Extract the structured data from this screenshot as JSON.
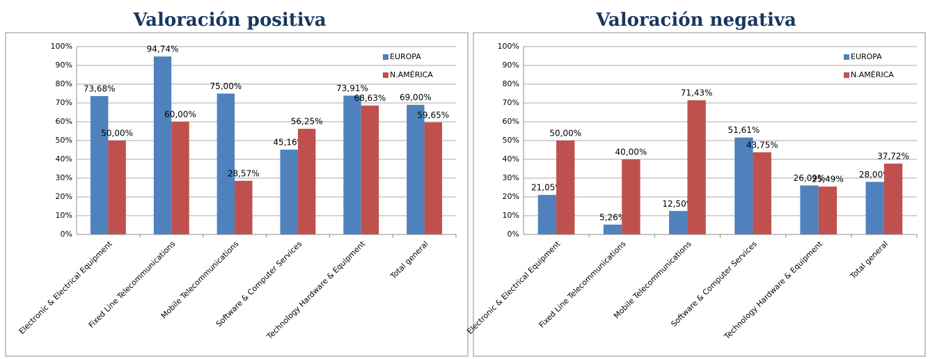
{
  "chart_data": [
    {
      "type": "bar",
      "title": "Valoración positiva",
      "categories": [
        "Electronic & Electrical Equipment",
        "Fixed Line Telecommunications",
        "Mobile Telecommunications",
        "Software & Computer Services",
        "Technology Hardware & Equipment",
        "Total general"
      ],
      "series": [
        {
          "name": "EUROPA",
          "color": "#4f81bd",
          "values": [
            73.68,
            94.74,
            75.0,
            45.16,
            73.91,
            69.0
          ],
          "value_labels": [
            "73,68%",
            "94,74%",
            "75,00%",
            "45,16%",
            "73,91%",
            "69,00%"
          ]
        },
        {
          "name": "N.AMÉRICA",
          "color": "#c0504d",
          "values": [
            50.0,
            60.0,
            28.57,
            56.25,
            68.63,
            59.65
          ],
          "value_labels": [
            "50,00%",
            "60,00%",
            "28,57%",
            "56,25%",
            "68,63%",
            "59,65%"
          ]
        }
      ],
      "ylim": [
        0,
        100
      ],
      "yticks": [
        {
          "value": 0,
          "label": "0%"
        },
        {
          "value": 10,
          "label": "10%"
        },
        {
          "value": 20,
          "label": "20%"
        },
        {
          "value": 30,
          "label": "30%"
        },
        {
          "value": 40,
          "label": "40%"
        },
        {
          "value": 50,
          "label": "50%"
        },
        {
          "value": 60,
          "label": "60%"
        },
        {
          "value": 70,
          "label": "70%"
        },
        {
          "value": 80,
          "label": "80%"
        },
        {
          "value": 90,
          "label": "90%"
        },
        {
          "value": 100,
          "label": "100%"
        }
      ],
      "grid": true,
      "legend": "top-right"
    },
    {
      "type": "bar",
      "title": "Valoración negativa",
      "categories": [
        "Electronic & Electrical Equipment",
        "Fixed Line Telecommunications",
        "Mobile Telecommunications",
        "Software & Computer Services",
        "Technology Hardware & Equipment",
        "Total general"
      ],
      "series": [
        {
          "name": "EUROPA",
          "color": "#4f81bd",
          "values": [
            21.05,
            5.26,
            12.5,
            51.61,
            26.09,
            28.0
          ],
          "value_labels": [
            "21,05%",
            "5,26%",
            "12,50%",
            "51,61%",
            "26,09%",
            "28,00%"
          ]
        },
        {
          "name": "N.AMÉRICA",
          "color": "#c0504d",
          "values": [
            50.0,
            40.0,
            71.43,
            43.75,
            25.49,
            37.72
          ],
          "value_labels": [
            "50,00%",
            "40,00%",
            "71,43%",
            "43,75%",
            "25,49%",
            "37,72%"
          ]
        }
      ],
      "ylim": [
        0,
        100
      ],
      "yticks": [
        {
          "value": 0,
          "label": "0%"
        },
        {
          "value": 10,
          "label": "10%"
        },
        {
          "value": 20,
          "label": "20%"
        },
        {
          "value": 30,
          "label": "30%"
        },
        {
          "value": 40,
          "label": "40%"
        },
        {
          "value": 50,
          "label": "50%"
        },
        {
          "value": 60,
          "label": "60%"
        },
        {
          "value": 70,
          "label": "70%"
        },
        {
          "value": 80,
          "label": "80%"
        },
        {
          "value": 90,
          "label": "90%"
        },
        {
          "value": 100,
          "label": "100%"
        }
      ],
      "grid": true,
      "legend": "top-right"
    }
  ]
}
